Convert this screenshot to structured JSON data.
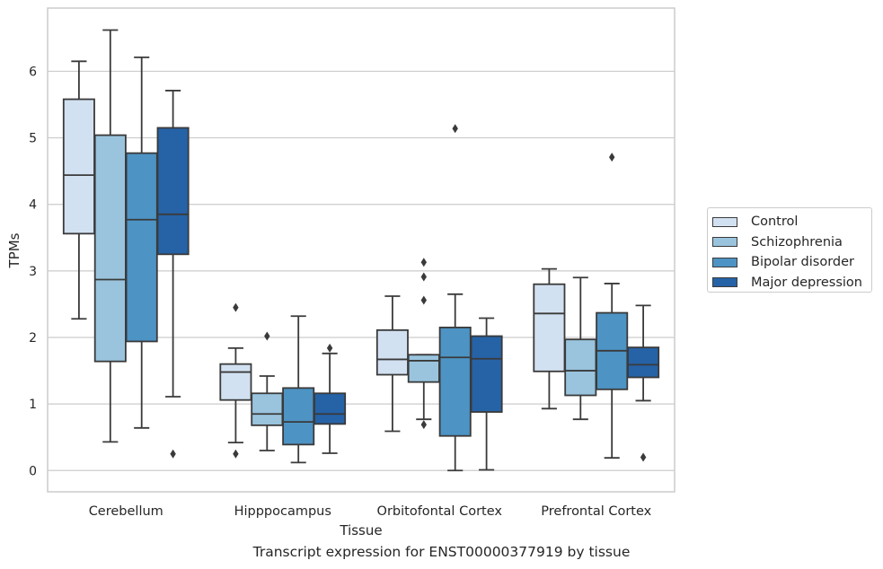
{
  "caption": "Transcript expression for ENST00000377919 by tissue",
  "colors": {
    "Control": "#d2e1f1",
    "Schizophrenia": "#9ac4de",
    "Bipolar disorder": "#4d93c4",
    "Major depression": "#2662a6",
    "box_edge": "#3a3a3a",
    "grid": "#cccccc"
  },
  "chart_data": {
    "type": "box",
    "title": "",
    "xlabel": "Tissue",
    "ylabel": "TPMs",
    "ylim": [
      -0.32,
      6.95
    ],
    "yticks": [
      0,
      1,
      2,
      3,
      4,
      5,
      6
    ],
    "grid": "horizontal",
    "legend_position": "right",
    "categories": [
      "Cerebellum",
      "Hipppocampus",
      "Orbitofontal Cortex",
      "Prefrontal Cortex"
    ],
    "series": [
      {
        "name": "Control",
        "boxes": [
          {
            "whislo": 2.28,
            "q1": 3.56,
            "med": 4.44,
            "q3": 5.58,
            "whishi": 6.15,
            "fliers": []
          },
          {
            "whislo": 0.42,
            "q1": 1.06,
            "med": 1.48,
            "q3": 1.6,
            "whishi": 1.84,
            "fliers": [
              2.45,
              0.25
            ]
          },
          {
            "whislo": 0.59,
            "q1": 1.44,
            "med": 1.67,
            "q3": 2.11,
            "whishi": 2.62,
            "fliers": []
          },
          {
            "whislo": 0.93,
            "q1": 1.49,
            "med": 2.36,
            "q3": 2.8,
            "whishi": 3.03,
            "fliers": []
          }
        ]
      },
      {
        "name": "Schizophrenia",
        "boxes": [
          {
            "whislo": 0.43,
            "q1": 1.64,
            "med": 2.87,
            "q3": 5.04,
            "whishi": 6.62,
            "fliers": []
          },
          {
            "whislo": 0.3,
            "q1": 0.68,
            "med": 0.85,
            "q3": 1.16,
            "whishi": 1.42,
            "fliers": [
              2.02
            ]
          },
          {
            "whislo": 0.77,
            "q1": 1.33,
            "med": 1.65,
            "q3": 1.74,
            "whishi": 1.74,
            "fliers": [
              3.13,
              2.91,
              2.56,
              0.69
            ]
          },
          {
            "whislo": 0.77,
            "q1": 1.13,
            "med": 1.5,
            "q3": 1.97,
            "whishi": 2.9,
            "fliers": []
          }
        ]
      },
      {
        "name": "Bipolar disorder",
        "boxes": [
          {
            "whislo": 0.64,
            "q1": 1.94,
            "med": 3.77,
            "q3": 4.77,
            "whishi": 6.21,
            "fliers": []
          },
          {
            "whislo": 0.12,
            "q1": 0.39,
            "med": 0.73,
            "q3": 1.24,
            "whishi": 2.32,
            "fliers": []
          },
          {
            "whislo": 0.0,
            "q1": 0.52,
            "med": 1.7,
            "q3": 2.15,
            "whishi": 2.65,
            "fliers": [
              5.14
            ]
          },
          {
            "whislo": 0.19,
            "q1": 1.22,
            "med": 1.8,
            "q3": 2.37,
            "whishi": 2.81,
            "fliers": [
              4.71
            ]
          }
        ]
      },
      {
        "name": "Major depression",
        "boxes": [
          {
            "whislo": 1.11,
            "q1": 3.25,
            "med": 3.85,
            "q3": 5.15,
            "whishi": 5.71,
            "fliers": [
              0.25
            ]
          },
          {
            "whislo": 0.26,
            "q1": 0.7,
            "med": 0.85,
            "q3": 1.16,
            "whishi": 1.76,
            "fliers": [
              1.84
            ]
          },
          {
            "whislo": 0.01,
            "q1": 0.88,
            "med": 1.68,
            "q3": 2.02,
            "whishi": 2.29,
            "fliers": []
          },
          {
            "whislo": 1.05,
            "q1": 1.4,
            "med": 1.59,
            "q3": 1.85,
            "whishi": 2.48,
            "fliers": [
              0.2
            ]
          }
        ]
      }
    ]
  }
}
